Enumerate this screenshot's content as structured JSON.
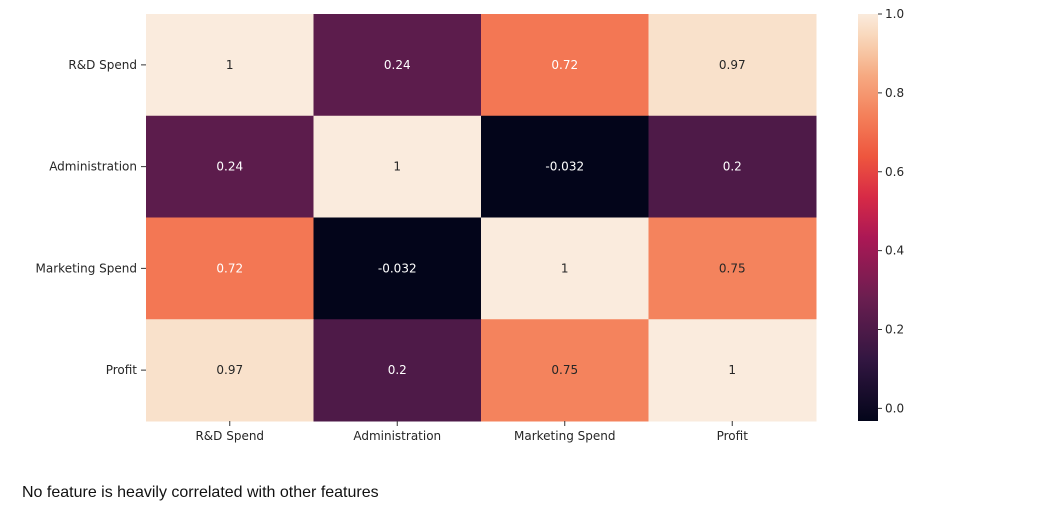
{
  "chart_data": {
    "type": "heatmap",
    "rows": [
      "R&D Spend",
      "Administration",
      "Marketing Spend",
      "Profit"
    ],
    "columns": [
      "R&D Spend",
      "Administration",
      "Marketing Spend",
      "Profit"
    ],
    "values": [
      [
        1,
        0.24,
        0.72,
        0.97
      ],
      [
        0.24,
        1,
        -0.032,
        0.2
      ],
      [
        0.72,
        -0.032,
        1,
        0.75
      ],
      [
        0.97,
        0.2,
        0.75,
        1
      ]
    ],
    "annotations": [
      [
        "1",
        "0.24",
        "0.72",
        "0.97"
      ],
      [
        "0.24",
        "1",
        "-0.032",
        "0.2"
      ],
      [
        "0.72",
        "-0.032",
        "1",
        "0.75"
      ],
      [
        "0.97",
        "0.2",
        "0.75",
        "1"
      ]
    ],
    "colormap": "rocket",
    "colorbar": {
      "range": [
        -0.032,
        1.0
      ],
      "ticks": [
        0.0,
        0.2,
        0.4,
        0.6,
        0.8,
        1.0
      ],
      "tick_labels": [
        "0.0",
        "0.2",
        "0.4",
        "0.6",
        "0.8",
        "1.0"
      ]
    }
  },
  "caption": "No feature is heavily correlated with other features"
}
